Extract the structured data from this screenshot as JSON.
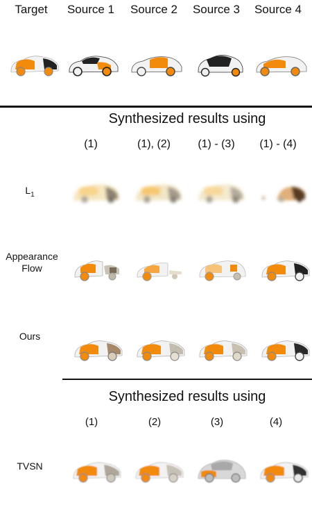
{
  "header": {
    "labels": [
      "Target",
      "Source 1",
      "Source 2",
      "Source 3",
      "Source 4"
    ]
  },
  "section1": {
    "title": "Synthesized results using",
    "columns": [
      "(1)",
      "(1), (2)",
      "(1) - (3)",
      "(1) - (4)"
    ],
    "rows": [
      {
        "label": "L",
        "subscript": "1"
      },
      {
        "label_line1": "Appearance",
        "label_line2": "Flow"
      },
      {
        "label": "Ours"
      }
    ]
  },
  "section2": {
    "title": "Synthesized results using",
    "columns": [
      "(1)",
      "(2)",
      "(3)",
      "(4)"
    ],
    "rows": [
      {
        "label": "TVSN"
      }
    ]
  },
  "colors": {
    "body_orange": "#f28a0c",
    "body_white": "#f2f2f2",
    "dark": "#222222",
    "rule": "#111111"
  }
}
